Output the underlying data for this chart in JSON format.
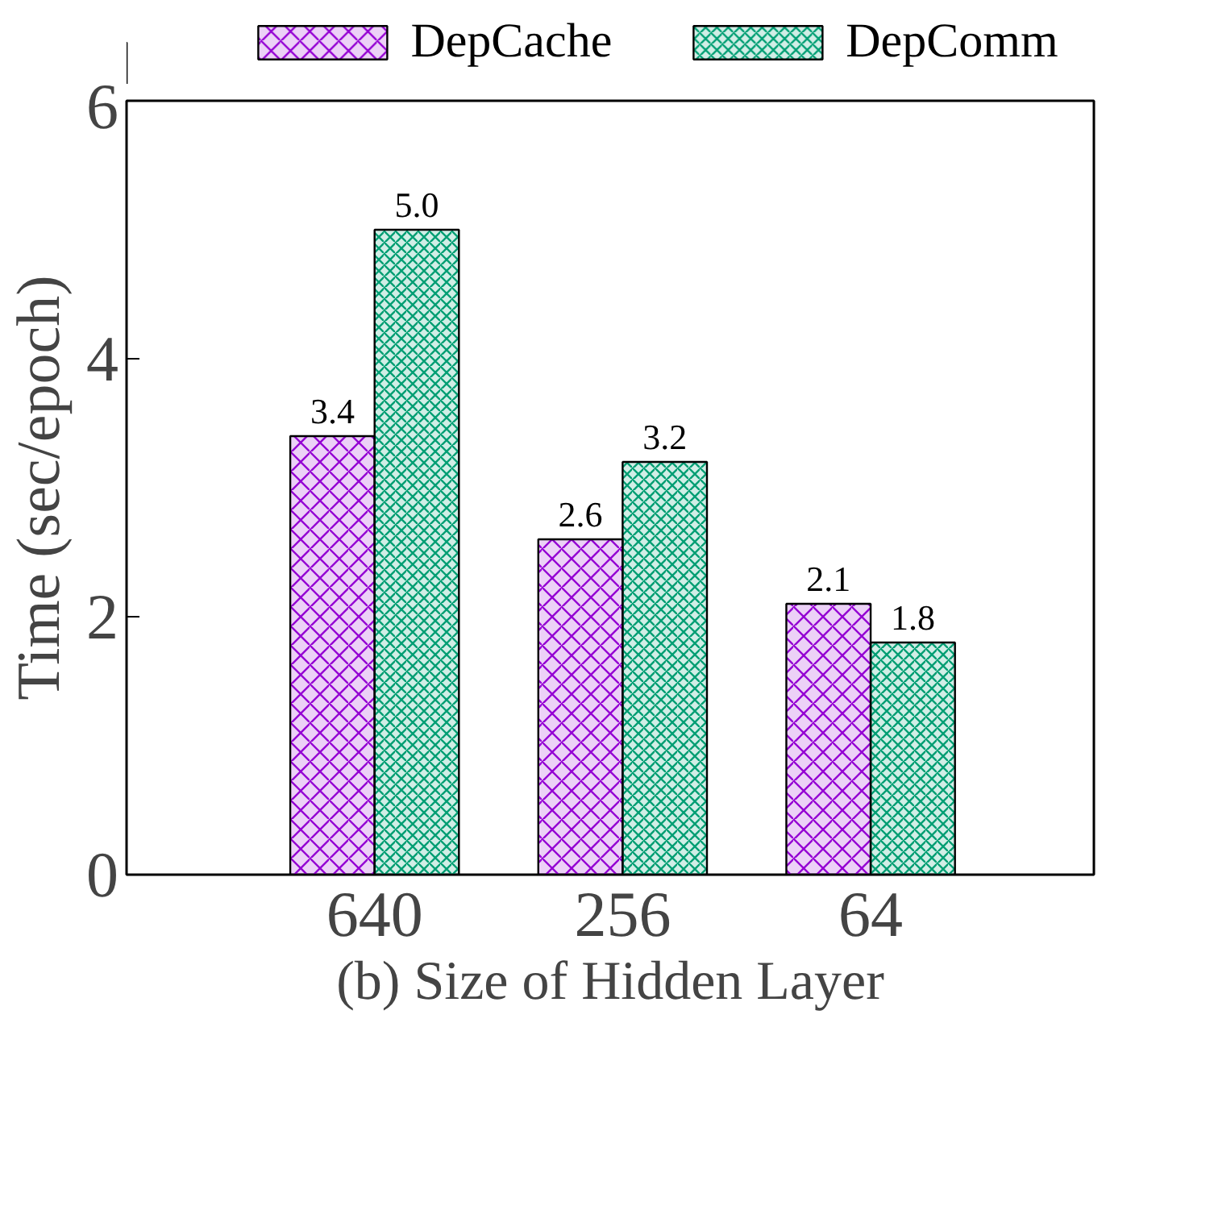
{
  "chart_data": {
    "type": "bar",
    "title": "(b) Size of Hidden Layer",
    "ylabel": "Time (sec/epoch)",
    "categories": [
      "640",
      "256",
      "64"
    ],
    "series": [
      {
        "name": "DepCache",
        "color": "#9400d3",
        "values": [
          3.4,
          2.6,
          2.1
        ],
        "value_labels": [
          "3.4",
          "2.6",
          "2.1"
        ]
      },
      {
        "name": "DepComm",
        "color": "#009e73",
        "values": [
          5.0,
          3.2,
          1.8
        ],
        "value_labels": [
          "5.0",
          "3.2",
          "1.8"
        ]
      }
    ],
    "ylim": [
      0,
      6
    ],
    "yticks": [
      0,
      2,
      4,
      6
    ],
    "grid": false,
    "legend": "top"
  }
}
